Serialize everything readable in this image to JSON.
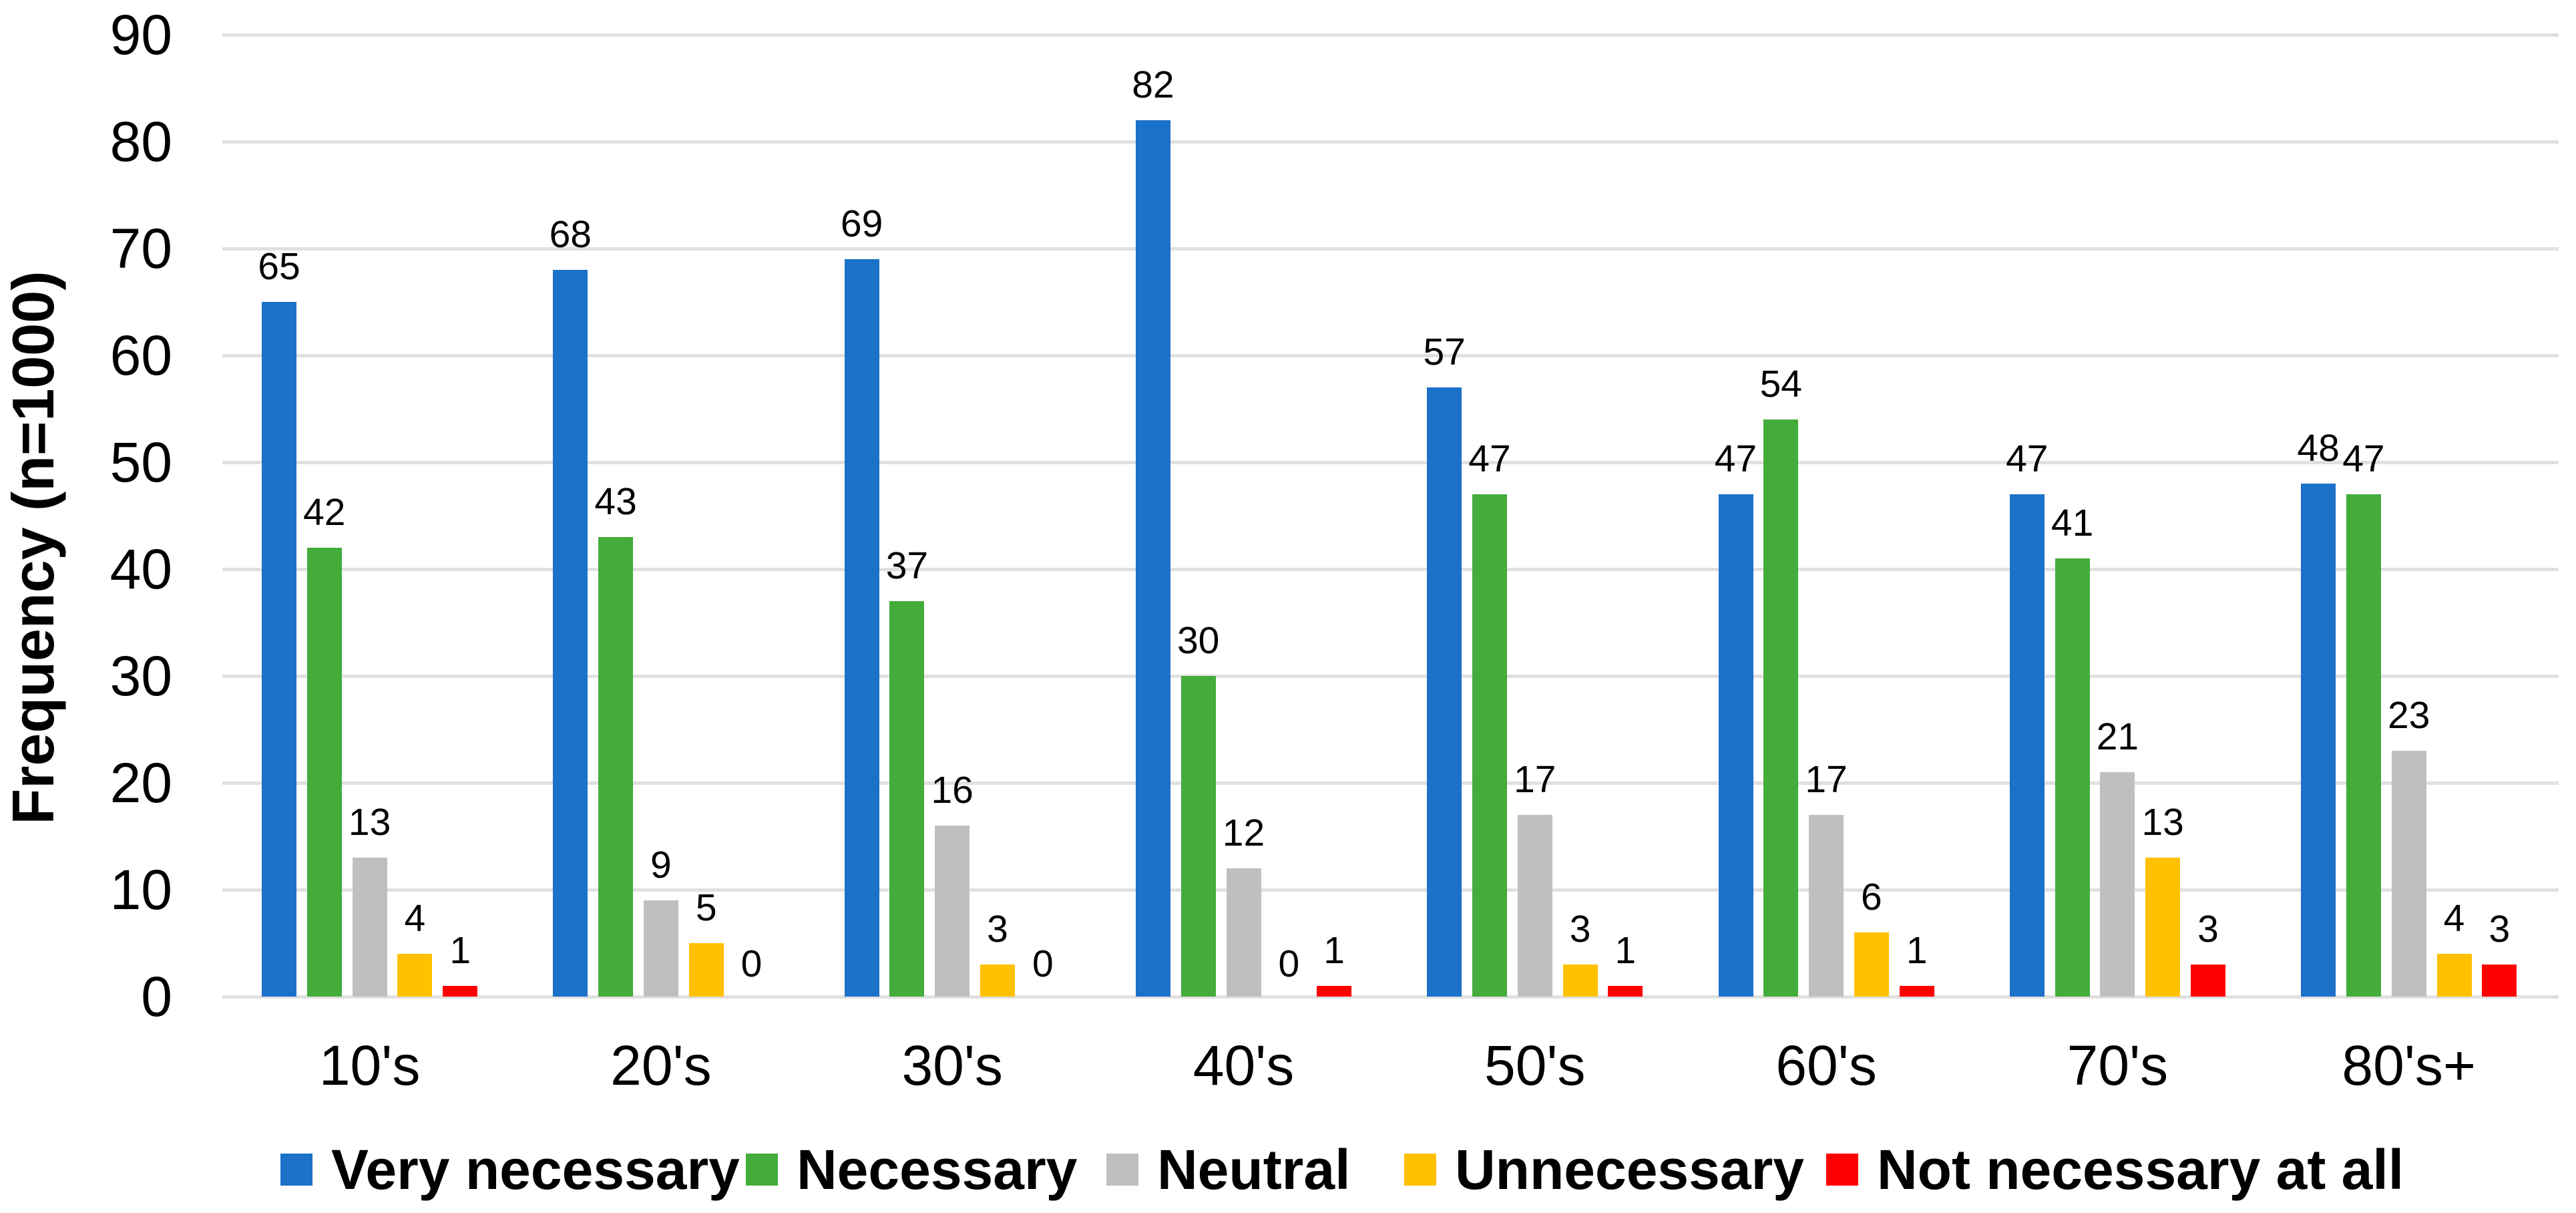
{
  "chart_data": {
    "type": "bar",
    "title": "",
    "xlabel": "",
    "ylabel": "Frequency (n=1000)",
    "ylim": [
      0,
      90
    ],
    "yticks": [
      0,
      10,
      20,
      30,
      40,
      50,
      60,
      70,
      80,
      90
    ],
    "grid": true,
    "data_labels": true,
    "legend_position": "bottom",
    "categories": [
      "10's",
      "20's",
      "30's",
      "40's",
      "50's",
      "60's",
      "70's",
      "80's+"
    ],
    "series": [
      {
        "name": "Very necessary",
        "color": "#1c71c8",
        "values": [
          65,
          68,
          69,
          82,
          57,
          47,
          47,
          48
        ]
      },
      {
        "name": "Necessary",
        "color": "#43ac3b",
        "values": [
          42,
          43,
          37,
          30,
          47,
          54,
          41,
          47
        ]
      },
      {
        "name": "Neutral",
        "color": "#bfbfbf",
        "values": [
          13,
          9,
          16,
          12,
          17,
          17,
          21,
          23
        ]
      },
      {
        "name": "Unnecessary",
        "color": "#ffc000",
        "values": [
          4,
          5,
          3,
          0,
          3,
          6,
          13,
          4
        ]
      },
      {
        "name": "Not necessary at all",
        "color": "#ff0000",
        "values": [
          1,
          0,
          0,
          1,
          1,
          1,
          3,
          3
        ]
      }
    ]
  },
  "colors": {
    "background": "#ffffff",
    "gridline": "#e0e0e0",
    "text": "#000000"
  }
}
